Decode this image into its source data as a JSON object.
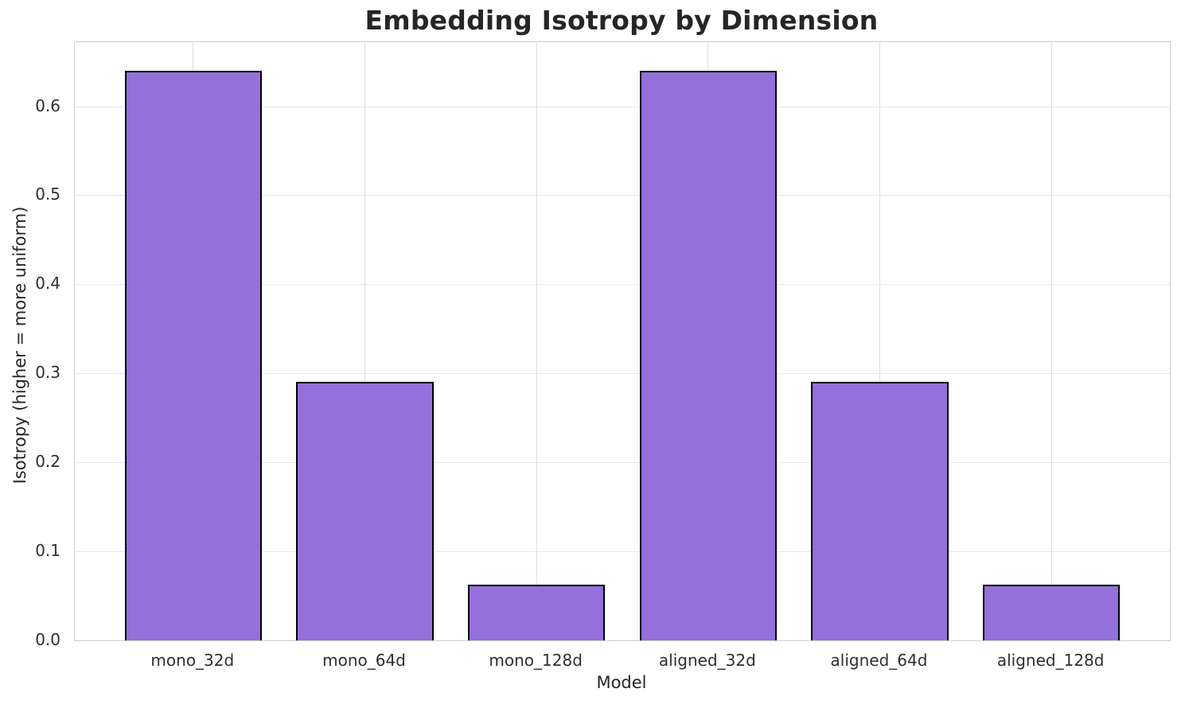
{
  "chart_data": {
    "type": "bar",
    "title": "Embedding Isotropy by Dimension",
    "xlabel": "Model",
    "ylabel": "Isotropy (higher = more uniform)",
    "categories": [
      "mono_32d",
      "mono_64d",
      "mono_128d",
      "aligned_32d",
      "aligned_64d",
      "aligned_128d"
    ],
    "values": [
      0.64,
      0.29,
      0.063,
      0.64,
      0.29,
      0.063
    ],
    "ylim": [
      0,
      0.672
    ],
    "yticks": [
      "0.0",
      "0.1",
      "0.2",
      "0.3",
      "0.4",
      "0.5",
      "0.6"
    ],
    "grid": true,
    "legend": "none",
    "bar_width_frac": 0.8,
    "x_margin_units": 0.69,
    "colors": {
      "bar_fill": "#9370DB",
      "bar_edge": "#000000",
      "grid_horizontal": "#e7e7e7",
      "grid_vertical": "#dedede",
      "spine": "#cfcfcf",
      "title_text": "#262626",
      "tick_text": "#2f2f2f"
    }
  }
}
